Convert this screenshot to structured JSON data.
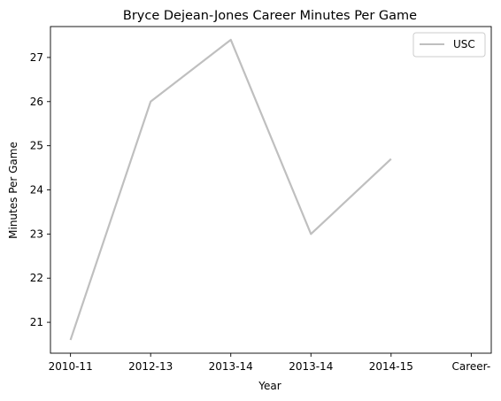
{
  "chart_data": {
    "type": "line",
    "title": "Bryce Dejean-Jones Career Minutes Per Game",
    "xlabel": "Year",
    "ylabel": "Minutes Per Game",
    "x": [
      0,
      1.0,
      2.0,
      3.0,
      4.0,
      5.0
    ],
    "x_tick_labels": [
      "2010-11",
      "2012-13",
      "2013-14",
      "2013-14",
      "2014-15",
      "Career-"
    ],
    "x_tick_positions": [
      0,
      1.0,
      2.0,
      3.0,
      4.0,
      5.0
    ],
    "data_x": [
      0,
      1.0,
      2.0,
      3.0,
      4.0,
      5.0
    ],
    "xlim": [
      -0.25,
      5.25
    ],
    "ylim": [
      20.3,
      27.7
    ],
    "y_ticks": [
      21,
      22,
      23,
      24,
      25,
      26,
      27
    ],
    "series": [
      {
        "name": "USC",
        "values": [
          20.6,
          26.0,
          27.4,
          23.0,
          24.7
        ],
        "x": [
          0,
          1.0,
          2.0,
          3.0,
          4.0
        ],
        "color": "#bfbfbf"
      }
    ],
    "grid": false,
    "legend_position": "top-right"
  }
}
